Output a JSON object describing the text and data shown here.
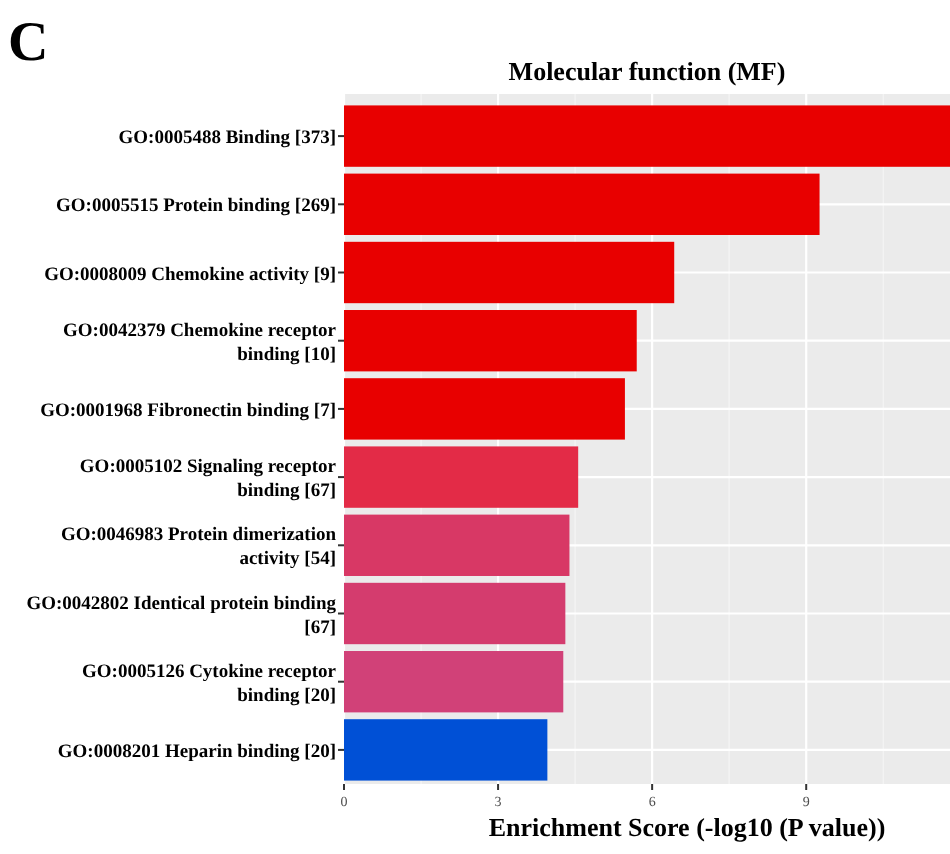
{
  "chart_data": {
    "type": "bar",
    "orientation": "horizontal",
    "title": "Molecular function (MF)",
    "xlabel": "Enrichment Score (-log10 (P value))",
    "annotations": [
      "C"
    ],
    "categories": [
      "GO:0005488 Binding [373]",
      "GO:0005515 Protein binding [269]",
      "GO:0008009 Chemokine activity [9]",
      "GO:0042379 Chemokine receptor binding [10]",
      "GO:0001968 Fibronectin binding [7]",
      "GO:0005102 Signaling receptor binding [67]",
      "GO:0046983 Protein dimerization activity [54]",
      "GO:0042802 Identical protein binding [67]",
      "GO:0005126 Cytokine receptor binding [20]",
      "GO:0008201 Heparin binding [20]"
    ],
    "values": [
      11.8,
      9.26,
      6.43,
      5.7,
      5.47,
      4.56,
      4.39,
      4.31,
      4.27,
      3.96
    ],
    "colors": [
      "#e80000",
      "#e80000",
      "#e80000",
      "#e80000",
      "#e80000",
      "#e32b47",
      "#d83865",
      "#d43c6e",
      "#d14178",
      "#0050d6"
    ],
    "xlim": [
      0,
      11.8
    ],
    "xticks": [
      0,
      3,
      6,
      9
    ],
    "grid": true
  }
}
